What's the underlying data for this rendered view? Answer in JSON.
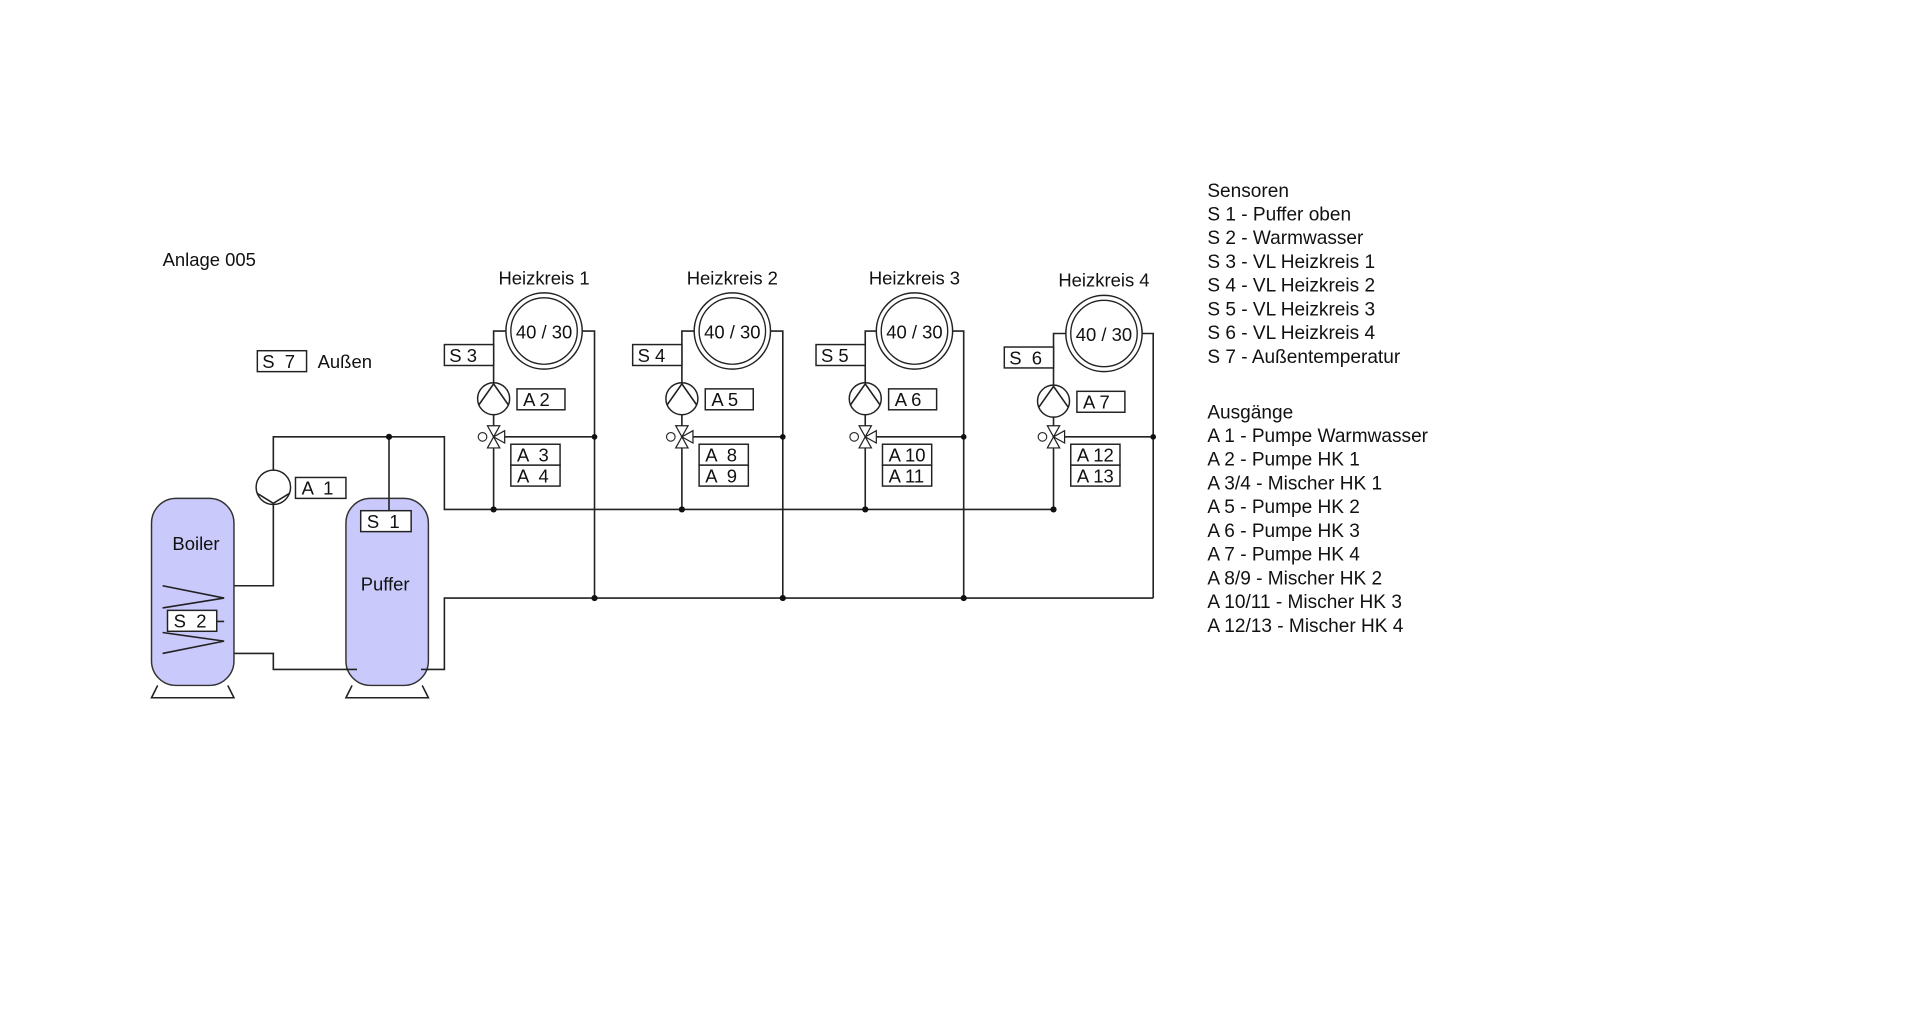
{
  "title": "Anlage 005",
  "outdoor": {
    "sensor": "S  7",
    "label": "Außen"
  },
  "boiler": {
    "label": "Boiler",
    "sensor": "S  2"
  },
  "buffer": {
    "label": "Puffer",
    "sensor": "S  1"
  },
  "pump_a1": "A  1",
  "tank_color": "#c9c9fb",
  "circuits": [
    {
      "name": "Heizkreis 1",
      "temps": "40 / 30",
      "sensor": "S 3",
      "pump": "A 2",
      "mixer_a": "A  3",
      "mixer_b": "A  4"
    },
    {
      "name": "Heizkreis 2",
      "temps": "40 / 30",
      "sensor": "S 4",
      "pump": "A 5",
      "mixer_a": "A  8",
      "mixer_b": "A  9"
    },
    {
      "name": "Heizkreis 3",
      "temps": "40 / 30",
      "sensor": "S 5",
      "pump": "A 6",
      "mixer_a": "A 10",
      "mixer_b": "A 11"
    },
    {
      "name": "Heizkreis 4",
      "temps": "40 / 30",
      "sensor": "S  6",
      "pump": "A 7",
      "mixer_a": "A 12",
      "mixer_b": "A 13"
    }
  ],
  "legend": {
    "sensors_title": "Sensoren",
    "sensors": [
      "S 1 - Puffer oben",
      "S 2 - Warmwasser",
      "S 3 - VL Heizkreis 1",
      "S 4 - VL Heizkreis 2",
      "S 5 - VL Heizkreis 3",
      "S 6 - VL Heizkreis 4",
      "S 7 - Außentemperatur"
    ],
    "outputs_title": "Ausgänge",
    "outputs": [
      "A 1 - Pumpe Warmwasser",
      "A 2 - Pumpe HK 1",
      "A 3/4 - Mischer HK 1",
      "A 5 - Pumpe HK 2",
      "A 6 - Pumpe HK 3",
      "A 7 - Pumpe HK 4",
      "A 8/9 - Mischer HK 2",
      "A 10/11 - Mischer HK 3",
      "A 12/13 - Mischer HK 4"
    ]
  }
}
